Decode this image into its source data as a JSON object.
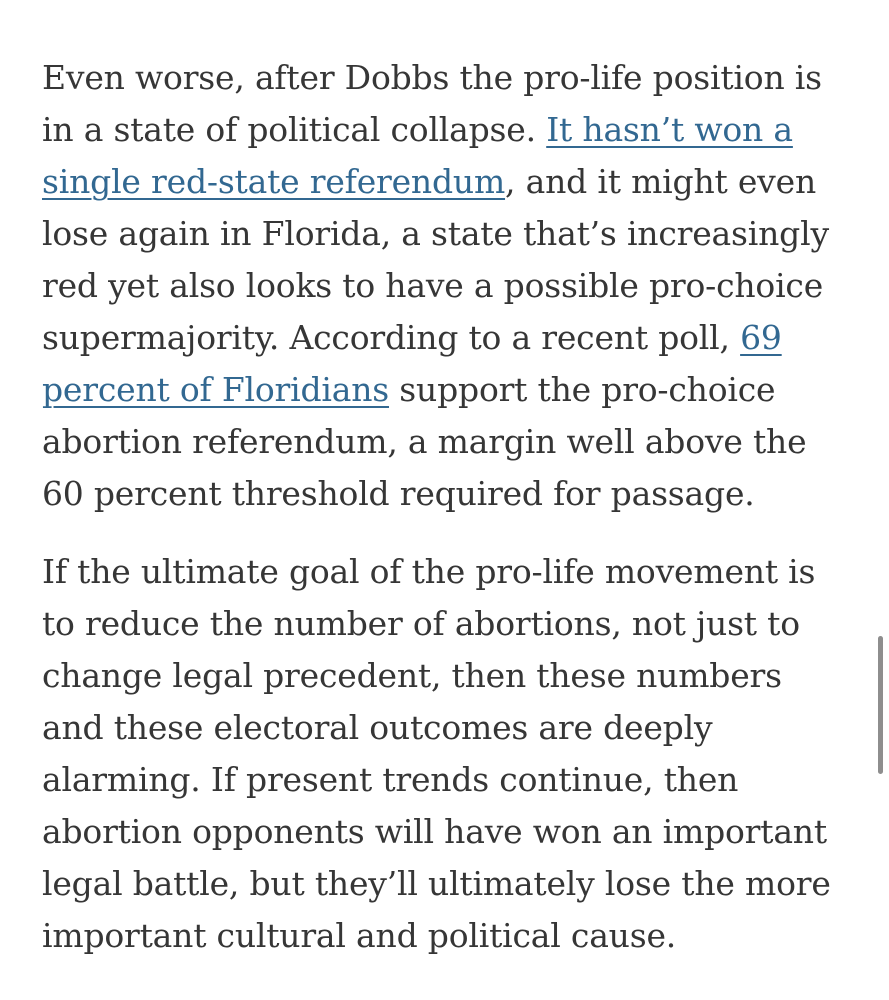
{
  "article": {
    "paragraphs": [
      {
        "lines": [
          [
            {
              "text": "Even worse, after Dobbs the pro-life position is"
            }
          ],
          [
            {
              "text": "in a state of political collapse. "
            },
            {
              "text": "It hasn’t won a",
              "link": true
            }
          ],
          [
            {
              "text": "single red-state referendum",
              "link": true
            },
            {
              "text": ", and it might even"
            }
          ],
          [
            {
              "text": "lose again in Florida, a state that’s increasingly"
            }
          ],
          [
            {
              "text": "red yet also looks to have a possible pro-choice"
            }
          ],
          [
            {
              "text": "supermajority. According to a recent poll, "
            },
            {
              "text": "69",
              "link": true
            }
          ],
          [
            {
              "text": "percent of Floridians",
              "link": true
            },
            {
              "text": " support the pro-choice"
            }
          ],
          [
            {
              "text": "abortion referendum, a margin well above the"
            }
          ],
          [
            {
              "text": "60 percent threshold required for passage."
            }
          ]
        ]
      },
      {
        "lines": [
          [
            {
              "text": "If the ultimate goal of the pro-life movement is"
            }
          ],
          [
            {
              "text": "to reduce the number of abortions, not just to"
            }
          ],
          [
            {
              "text": "change legal precedent, then these numbers"
            }
          ],
          [
            {
              "text": "and these electoral outcomes are deeply"
            }
          ],
          [
            {
              "text": "alarming. If present trends continue, then"
            }
          ],
          [
            {
              "text": "abortion opponents will have won an important"
            }
          ],
          [
            {
              "text": "legal battle, but they’ll ultimately lose the more"
            }
          ],
          [
            {
              "text": "important cultural and political cause."
            }
          ]
        ]
      }
    ]
  },
  "colors": {
    "text": "#363636",
    "link": "#326891",
    "background": "#ffffff",
    "scrollbar": "#8e8e8e"
  }
}
